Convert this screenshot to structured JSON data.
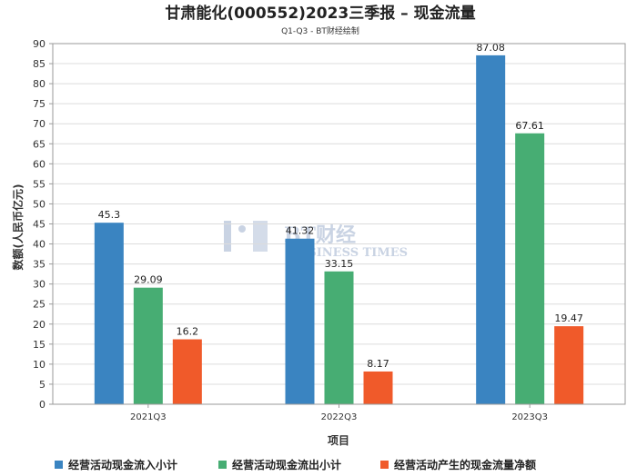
{
  "chart_data": {
    "type": "bar",
    "title": "甘肃能化(000552)2023三季报 – 现金流量",
    "subtitle": "Q1-Q3 - BT财经绘制",
    "xlabel": "项目",
    "ylabel": "数额(人民币亿元)",
    "ylim": [
      0,
      90
    ],
    "yticks": [
      0,
      5,
      10,
      15,
      20,
      25,
      30,
      35,
      40,
      45,
      50,
      55,
      60,
      65,
      70,
      75,
      80,
      85,
      90
    ],
    "categories": [
      "2021Q3",
      "2022Q3",
      "2023Q3"
    ],
    "series": [
      {
        "name": "经营活动现金流入小计",
        "color": "#3a84c1",
        "values": [
          45.3,
          41.32,
          87.08
        ],
        "labels": [
          "45.3",
          "41.32",
          "87.08"
        ]
      },
      {
        "name": "经营活动现金流出小计",
        "color": "#47ad73",
        "values": [
          29.09,
          33.15,
          67.61
        ],
        "labels": [
          "29.09",
          "33.15",
          "67.61"
        ]
      },
      {
        "name": "经营活动产生的现金流量净额",
        "color": "#f05a2a",
        "values": [
          16.2,
          8.17,
          19.47
        ],
        "labels": [
          "16.2",
          "8.17",
          "19.47"
        ]
      }
    ],
    "grid": true,
    "legend_position": "bottom",
    "watermark": {
      "line1": "BT财经",
      "line2": "BUSINESS TIMES"
    }
  }
}
